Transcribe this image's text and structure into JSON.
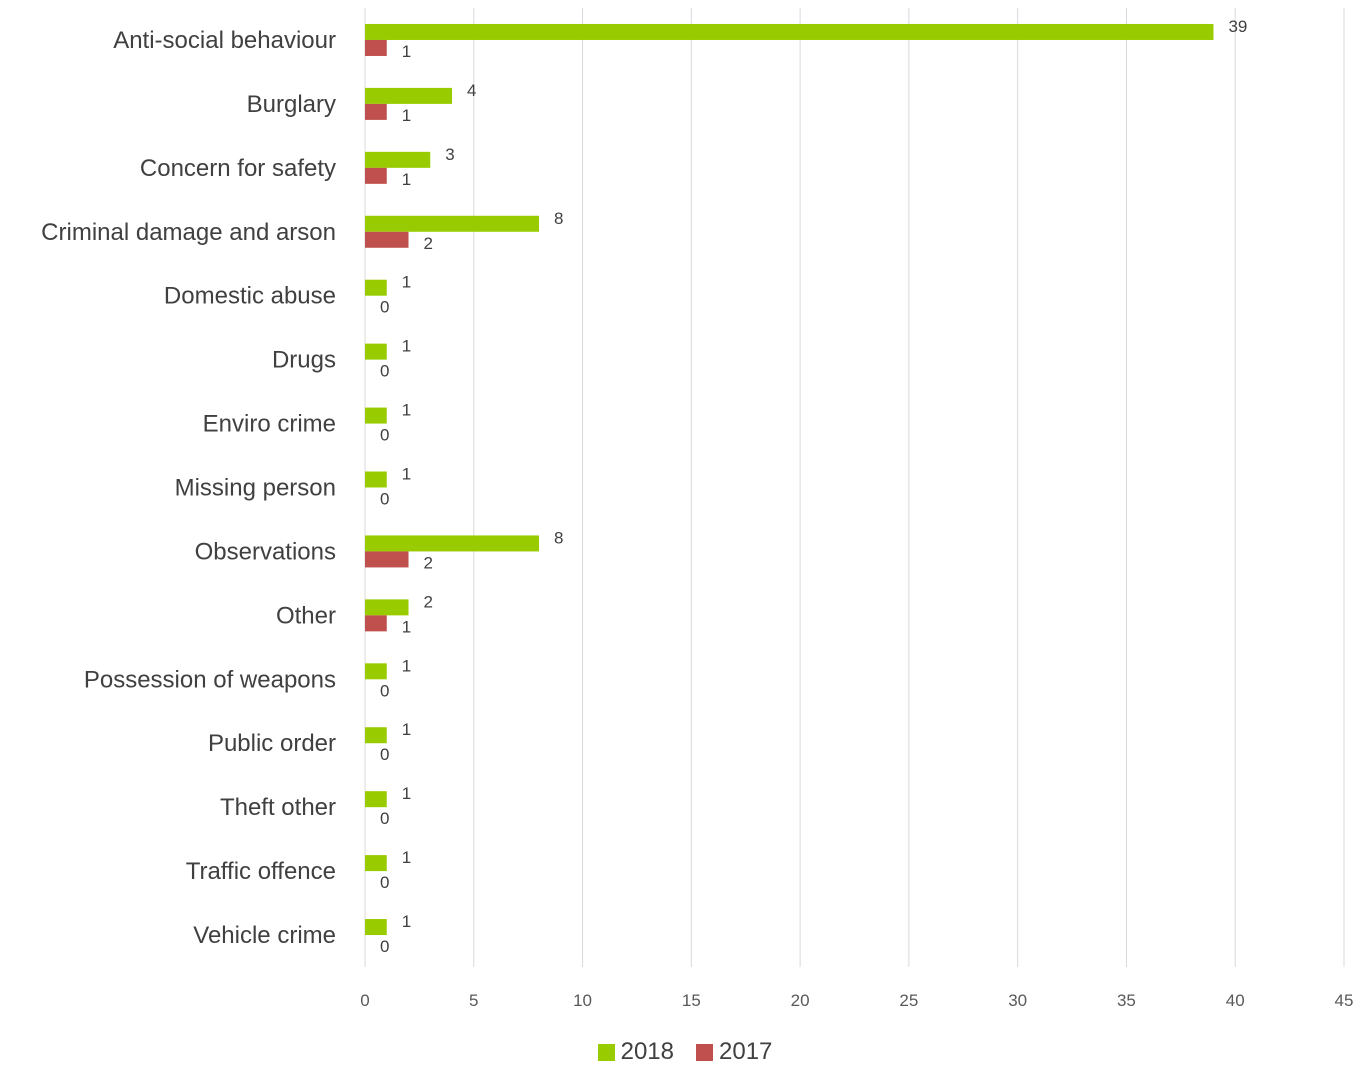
{
  "chart_data": {
    "type": "bar",
    "orientation": "horizontal",
    "categories": [
      "Anti-social behaviour",
      "Burglary",
      "Concern for safety",
      "Criminal damage and arson",
      "Domestic abuse",
      "Drugs",
      "Enviro crime",
      "Missing person",
      "Observations",
      "Other",
      "Possession of weapons",
      "Public order",
      "Theft other",
      "Traffic offence",
      "Vehicle crime"
    ],
    "series": [
      {
        "name": "2018",
        "color": "#99cc00",
        "values": [
          39,
          4,
          3,
          8,
          1,
          1,
          1,
          1,
          8,
          2,
          1,
          1,
          1,
          1,
          1
        ]
      },
      {
        "name": "2017",
        "color": "#c0504d",
        "values": [
          1,
          1,
          1,
          2,
          0,
          0,
          0,
          0,
          2,
          1,
          0,
          0,
          0,
          0,
          0
        ]
      }
    ],
    "xlim": [
      0,
      45
    ],
    "x_ticks": [
      0,
      5,
      10,
      15,
      20,
      25,
      30,
      35,
      40,
      45
    ],
    "grid": true,
    "data_labels": true,
    "legend_position": "bottom"
  }
}
